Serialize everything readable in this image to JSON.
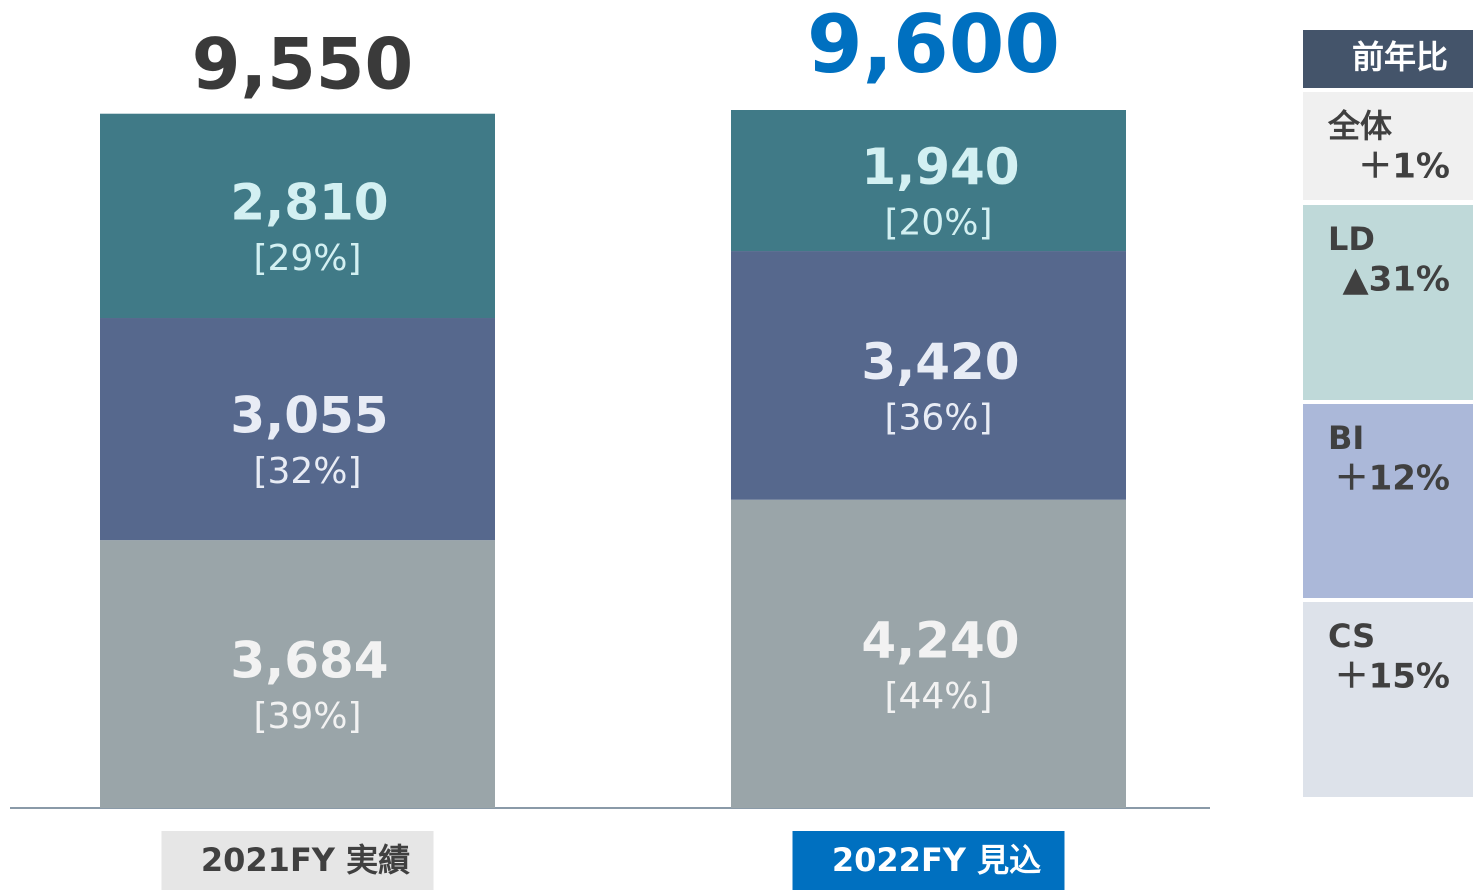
{
  "chart_data": {
    "type": "stacked_bar",
    "categories": [
      "2021FY 実績",
      "2022FY 見込"
    ],
    "series": [
      {
        "name": "CS",
        "color": "#9aa5a9",
        "values": [
          3684,
          4240
        ],
        "share_labels": [
          "[39%]",
          "[44%]"
        ]
      },
      {
        "name": "BI",
        "color": "#56688d",
        "values": [
          3055,
          3420
        ],
        "share_labels": [
          "[32%]",
          "[36%]"
        ]
      },
      {
        "name": "LD",
        "color": "#407a87",
        "values": [
          2810,
          1940
        ],
        "share_labels": [
          "[29%]",
          "[20%]"
        ]
      }
    ],
    "total_labels": [
      "9,550",
      "9,600"
    ]
  },
  "yoy_table": {
    "header": "前年比",
    "rows": [
      {
        "name": "全体",
        "change": "＋1%",
        "color": "#f0f0f0"
      },
      {
        "name": "LD",
        "change": "▲31%",
        "color": "#bfd9d9"
      },
      {
        "name": "BI",
        "change": "＋12%",
        "color": "#abb8d9"
      },
      {
        "name": "CS",
        "change": "＋15%",
        "color": "#dde2ea"
      }
    ]
  }
}
